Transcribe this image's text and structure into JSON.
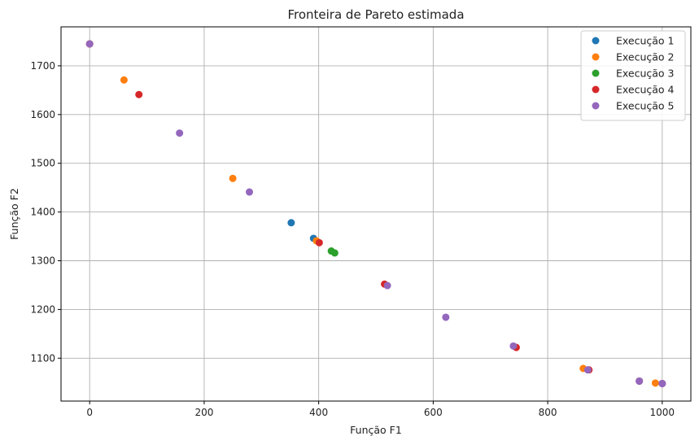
{
  "chart_data": {
    "type": "scatter",
    "title": "Fronteira de Pareto estimada",
    "xlabel": "Função F1",
    "ylabel": "Função F2",
    "xlim": [
      -50,
      1050
    ],
    "ylim": [
      1012,
      1780
    ],
    "xticks": [
      0,
      200,
      400,
      600,
      800,
      1000
    ],
    "yticks": [
      1100,
      1200,
      1300,
      1400,
      1500,
      1600,
      1700
    ],
    "grid": true,
    "legend_position": "top-right",
    "series": [
      {
        "name": "Execução 1",
        "color": "#1f77b4",
        "points": [
          [
            0,
            1745
          ],
          [
            352,
            1378
          ],
          [
            391,
            1346
          ],
          [
            960,
            1053
          ],
          [
            1000,
            1048
          ]
        ]
      },
      {
        "name": "Execução 2",
        "color": "#ff7f0e",
        "points": [
          [
            0,
            1745
          ],
          [
            60,
            1671
          ],
          [
            250,
            1469
          ],
          [
            396,
            1341
          ],
          [
            862,
            1079
          ],
          [
            988,
            1049
          ]
        ]
      },
      {
        "name": "Execução 3",
        "color": "#2ca02c",
        "points": [
          [
            422,
            1320
          ],
          [
            428,
            1316
          ]
        ]
      },
      {
        "name": "Execução 4",
        "color": "#d62728",
        "points": [
          [
            0,
            1745
          ],
          [
            86,
            1641
          ],
          [
            401,
            1337
          ],
          [
            515,
            1252
          ],
          [
            745,
            1122
          ],
          [
            872,
            1076
          ],
          [
            960,
            1053
          ],
          [
            1000,
            1048
          ]
        ]
      },
      {
        "name": "Execução 5",
        "color": "#9467bd",
        "points": [
          [
            0,
            1745
          ],
          [
            157,
            1562
          ],
          [
            279,
            1441
          ],
          [
            520,
            1249
          ],
          [
            622,
            1184
          ],
          [
            740,
            1125
          ],
          [
            870,
            1076
          ],
          [
            960,
            1053
          ],
          [
            1000,
            1048
          ]
        ]
      }
    ]
  }
}
